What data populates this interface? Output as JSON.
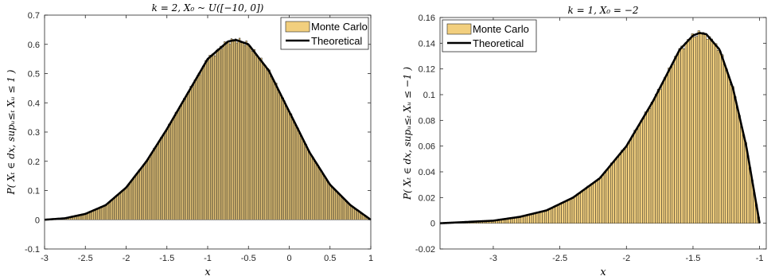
{
  "chart_data": [
    {
      "type": "bar",
      "title": "k = 2, X₀ ~ U([−10, 0])",
      "xlabel": "x",
      "ylabel": "P( Xₜ ∈ dx, supᵤ≤ₜ Xᵤ ≤ 1 )",
      "xlim": [
        -3,
        1
      ],
      "ylim": [
        -0.1,
        0.7
      ],
      "xticks": [
        -3,
        -2.5,
        -2,
        -1.5,
        -1,
        -0.5,
        0,
        0.5,
        1
      ],
      "xtick_labels": [
        "-3",
        "-2.5",
        "-2",
        "-1.5",
        "-1",
        "-0.5",
        "0",
        "0.5",
        "1"
      ],
      "yticks": [
        -0.1,
        0,
        0.1,
        0.2,
        0.3,
        0.4,
        0.5,
        0.6,
        0.7
      ],
      "ytick_labels": [
        "-0.1",
        "0",
        "0.1",
        "0.2",
        "0.3",
        "0.4",
        "0.5",
        "0.6",
        "0.7"
      ],
      "bar_color": "#f2cf7e",
      "line_color": "#000000",
      "legend_position": "top-right",
      "series": [
        {
          "name": "Monte Carlo",
          "kind": "histogram",
          "x": [
            -3,
            -2.75,
            -2.5,
            -2.25,
            -2,
            -1.75,
            -1.5,
            -1.25,
            -1,
            -0.75,
            -0.65,
            -0.5,
            -0.25,
            0,
            0.25,
            0.5,
            0.75,
            1
          ],
          "values": [
            0.0,
            0.005,
            0.02,
            0.05,
            0.11,
            0.2,
            0.31,
            0.43,
            0.55,
            0.61,
            0.615,
            0.6,
            0.51,
            0.37,
            0.23,
            0.12,
            0.05,
            0.0
          ]
        },
        {
          "name": "Theoretical",
          "kind": "line",
          "x": [
            -3,
            -2.75,
            -2.5,
            -2.25,
            -2,
            -1.75,
            -1.5,
            -1.25,
            -1,
            -0.75,
            -0.65,
            -0.5,
            -0.25,
            0,
            0.25,
            0.5,
            0.75,
            1
          ],
          "values": [
            0.0,
            0.005,
            0.02,
            0.05,
            0.11,
            0.2,
            0.31,
            0.43,
            0.55,
            0.61,
            0.615,
            0.6,
            0.51,
            0.37,
            0.23,
            0.12,
            0.05,
            0.0
          ]
        }
      ]
    },
    {
      "type": "bar",
      "title": "k = 1, X₀ = −2",
      "xlabel": "x",
      "ylabel": "P( Xₜ ∈ dx, supᵤ≤ₜ Xᵤ ≤ −1 )",
      "xlim": [
        -3.4,
        -0.95
      ],
      "ylim": [
        -0.02,
        0.16
      ],
      "xticks": [
        -3,
        -2.5,
        -2,
        -1.5,
        -1
      ],
      "xtick_labels": [
        "-3",
        "-2.5",
        "-2",
        "-1.5",
        "-1"
      ],
      "yticks": [
        -0.02,
        0,
        0.02,
        0.04,
        0.06,
        0.08,
        0.1,
        0.12,
        0.14,
        0.16
      ],
      "ytick_labels": [
        "-0.02",
        "0",
        "0.02",
        "0.04",
        "0.06",
        "0.08",
        "0.1",
        "0.12",
        "0.14",
        "0.16"
      ],
      "bar_color": "#f2cf7e",
      "line_color": "#000000",
      "legend_position": "top-left",
      "series": [
        {
          "name": "Monte Carlo",
          "kind": "histogram",
          "x": [
            -3.4,
            -3.2,
            -3.0,
            -2.8,
            -2.6,
            -2.4,
            -2.2,
            -2.0,
            -1.8,
            -1.7,
            -1.6,
            -1.5,
            -1.45,
            -1.4,
            -1.3,
            -1.2,
            -1.1,
            -1.05,
            -1.0
          ],
          "values": [
            0.0,
            0.001,
            0.002,
            0.005,
            0.01,
            0.02,
            0.035,
            0.06,
            0.095,
            0.115,
            0.135,
            0.146,
            0.148,
            0.147,
            0.135,
            0.105,
            0.06,
            0.03,
            0.0
          ]
        },
        {
          "name": "Theoretical",
          "kind": "line",
          "x": [
            -3.4,
            -3.2,
            -3.0,
            -2.8,
            -2.6,
            -2.4,
            -2.2,
            -2.0,
            -1.8,
            -1.7,
            -1.6,
            -1.5,
            -1.45,
            -1.4,
            -1.3,
            -1.2,
            -1.1,
            -1.05,
            -1.0
          ],
          "values": [
            0.0,
            0.001,
            0.002,
            0.005,
            0.01,
            0.02,
            0.035,
            0.06,
            0.095,
            0.115,
            0.135,
            0.146,
            0.148,
            0.147,
            0.135,
            0.105,
            0.06,
            0.03,
            0.0
          ]
        }
      ]
    }
  ]
}
